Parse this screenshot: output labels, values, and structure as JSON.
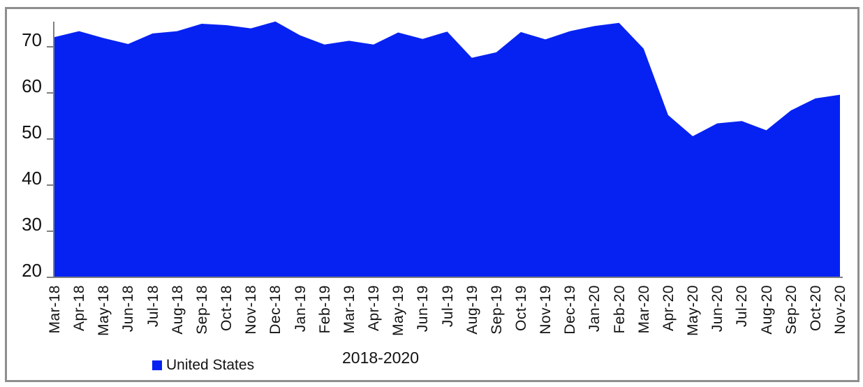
{
  "chart_data": {
    "type": "area",
    "title": "",
    "xlabel": "2018-2020",
    "ylabel": "",
    "legend": [
      "United States"
    ],
    "legend_position": "bottom",
    "series_color": "#0522f2",
    "axis_color": "#808080",
    "grid": false,
    "ylim": [
      20,
      76
    ],
    "yticks": [
      20,
      30,
      40,
      50,
      60,
      70
    ],
    "categories": [
      "Mar-18",
      "Apr-18",
      "May-18",
      "Jun-18",
      "Jul-18",
      "Aug-18",
      "Sep-18",
      "Oct-18",
      "Nov-18",
      "Dec-18",
      "Jan-19",
      "Feb-19",
      "Mar-19",
      "Apr-19",
      "May-19",
      "Jun-19",
      "Jul-19",
      "Aug-19",
      "Sep-19",
      "Oct-19",
      "Nov-19",
      "Dec-19",
      "Jan-20",
      "Feb-20",
      "Mar-20",
      "Apr-20",
      "May-20",
      "Jun-20",
      "Jul-20",
      "Aug-20",
      "Sep-20",
      "Oct-20",
      "Nov-20"
    ],
    "series": [
      {
        "name": "United States",
        "values": [
          72.1,
          73.4,
          71.9,
          70.6,
          72.9,
          73.4,
          75.0,
          74.7,
          74.0,
          75.5,
          72.5,
          70.5,
          71.3,
          70.5,
          73.1,
          71.7,
          73.3,
          67.6,
          68.8,
          73.2,
          71.6,
          73.4,
          74.5,
          75.2,
          69.6,
          55.2,
          50.6,
          53.4,
          53.9,
          51.9,
          56.2,
          58.8,
          59.6
        ]
      }
    ]
  }
}
